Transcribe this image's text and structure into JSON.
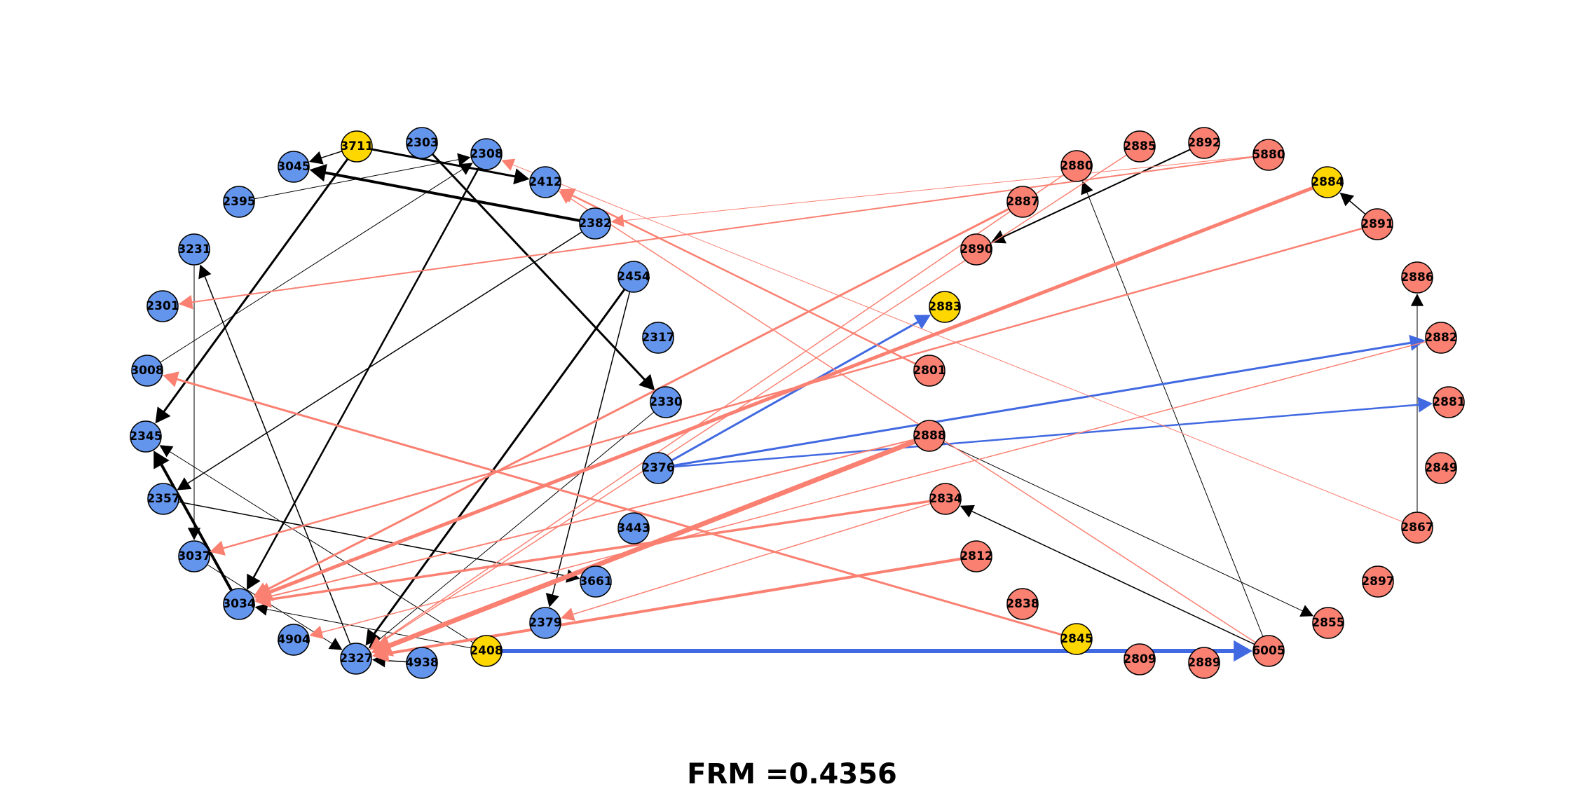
{
  "metric": {
    "label": "FRM =",
    "value": "0.4356"
  },
  "colors": {
    "group_a": "#6495ED",
    "group_b": "#FA8072",
    "highlight": "#FFD700",
    "edge_black": "#000000",
    "edge_salmon": "#FA8072",
    "edge_blue": "#4169E1"
  },
  "nodes": [
    {
      "id": "3711",
      "group": "highlight"
    },
    {
      "id": "2303",
      "group": "group_a"
    },
    {
      "id": "2308",
      "group": "group_a"
    },
    {
      "id": "2412",
      "group": "group_a"
    },
    {
      "id": "3045",
      "group": "group_a"
    },
    {
      "id": "2395",
      "group": "group_a"
    },
    {
      "id": "2382",
      "group": "group_a"
    },
    {
      "id": "3231",
      "group": "group_a"
    },
    {
      "id": "2454",
      "group": "group_a"
    },
    {
      "id": "2301",
      "group": "group_a"
    },
    {
      "id": "2317",
      "group": "group_a"
    },
    {
      "id": "3008",
      "group": "group_a"
    },
    {
      "id": "2330",
      "group": "group_a"
    },
    {
      "id": "2345",
      "group": "group_a"
    },
    {
      "id": "2376",
      "group": "group_a"
    },
    {
      "id": "2357",
      "group": "group_a"
    },
    {
      "id": "3443",
      "group": "group_a"
    },
    {
      "id": "3037",
      "group": "group_a"
    },
    {
      "id": "3661",
      "group": "group_a"
    },
    {
      "id": "3034",
      "group": "group_a"
    },
    {
      "id": "2379",
      "group": "group_a"
    },
    {
      "id": "4904",
      "group": "group_a"
    },
    {
      "id": "2408",
      "group": "highlight"
    },
    {
      "id": "2327",
      "group": "group_a"
    },
    {
      "id": "4938",
      "group": "group_a"
    },
    {
      "id": "2880",
      "group": "group_b"
    },
    {
      "id": "2885",
      "group": "group_b"
    },
    {
      "id": "2892",
      "group": "group_b"
    },
    {
      "id": "5880",
      "group": "group_b"
    },
    {
      "id": "2884",
      "group": "highlight"
    },
    {
      "id": "2887",
      "group": "group_b"
    },
    {
      "id": "2891",
      "group": "group_b"
    },
    {
      "id": "2890",
      "group": "group_b"
    },
    {
      "id": "2886",
      "group": "group_b"
    },
    {
      "id": "2883",
      "group": "highlight"
    },
    {
      "id": "2882",
      "group": "group_b"
    },
    {
      "id": "2801",
      "group": "group_b"
    },
    {
      "id": "2881",
      "group": "group_b"
    },
    {
      "id": "2888",
      "group": "group_b"
    },
    {
      "id": "2849",
      "group": "group_b"
    },
    {
      "id": "2834",
      "group": "group_b"
    },
    {
      "id": "2867",
      "group": "group_b"
    },
    {
      "id": "2812",
      "group": "group_b"
    },
    {
      "id": "2897",
      "group": "group_b"
    },
    {
      "id": "2838",
      "group": "group_b"
    },
    {
      "id": "2845",
      "group": "highlight"
    },
    {
      "id": "2855",
      "group": "group_b"
    },
    {
      "id": "2809",
      "group": "group_b"
    },
    {
      "id": "2889",
      "group": "group_b"
    },
    {
      "id": "6005",
      "group": "group_b"
    }
  ],
  "edges": [
    {
      "from": "3711",
      "to": "3045",
      "color": "edge_black",
      "weight": 1.5
    },
    {
      "from": "3711",
      "to": "2412",
      "color": "edge_black",
      "weight": 3
    },
    {
      "from": "3711",
      "to": "2345",
      "color": "edge_black",
      "weight": 3
    },
    {
      "from": "2303",
      "to": "2330",
      "color": "edge_black",
      "weight": 3
    },
    {
      "from": "2395",
      "to": "2308",
      "color": "edge_black",
      "weight": 1
    },
    {
      "from": "3008",
      "to": "2308",
      "color": "edge_black",
      "weight": 1
    },
    {
      "from": "2308",
      "to": "3034",
      "color": "edge_black",
      "weight": 2.5
    },
    {
      "from": "2382",
      "to": "3045",
      "color": "edge_black",
      "weight": 4
    },
    {
      "from": "2382",
      "to": "2357",
      "color": "edge_black",
      "weight": 1.5
    },
    {
      "from": "2454",
      "to": "2327",
      "color": "edge_black",
      "weight": 3
    },
    {
      "from": "2454",
      "to": "2379",
      "color": "edge_black",
      "weight": 1.5
    },
    {
      "from": "2330",
      "to": "2327",
      "color": "edge_black",
      "weight": 1
    },
    {
      "from": "3231",
      "to": "3037",
      "color": "edge_black",
      "weight": 1
    },
    {
      "from": "2327",
      "to": "3231",
      "color": "edge_black",
      "weight": 1.5
    },
    {
      "from": "3034",
      "to": "2345",
      "color": "edge_black",
      "weight": 4
    },
    {
      "from": "2357",
      "to": "3661",
      "color": "edge_black",
      "weight": 1.5
    },
    {
      "from": "3037",
      "to": "2327",
      "color": "edge_black",
      "weight": 1
    },
    {
      "from": "2408",
      "to": "2345",
      "color": "edge_black",
      "weight": 1
    },
    {
      "from": "2408",
      "to": "3034",
      "color": "edge_black",
      "weight": 1
    },
    {
      "from": "4938",
      "to": "2327",
      "color": "edge_black",
      "weight": 1.5
    },
    {
      "from": "2892",
      "to": "2890",
      "color": "edge_black",
      "weight": 2
    },
    {
      "from": "2891",
      "to": "2884",
      "color": "edge_black",
      "weight": 1.5
    },
    {
      "from": "2867",
      "to": "2886",
      "color": "edge_black",
      "weight": 1
    },
    {
      "from": "6005",
      "to": "2880",
      "color": "edge_black",
      "weight": 1
    },
    {
      "from": "6005",
      "to": "2834",
      "color": "edge_black",
      "weight": 1.5
    },
    {
      "from": "2888",
      "to": "2855",
      "color": "edge_black",
      "weight": 1
    },
    {
      "from": "2376",
      "to": "2883",
      "color": "edge_blue",
      "weight": 3
    },
    {
      "from": "2376",
      "to": "2882",
      "color": "edge_blue",
      "weight": 3
    },
    {
      "from": "2376",
      "to": "2881",
      "color": "edge_blue",
      "weight": 2.5
    },
    {
      "from": "2408",
      "to": "6005",
      "color": "edge_blue",
      "weight": 6
    },
    {
      "from": "5880",
      "to": "2301",
      "color": "edge_salmon",
      "weight": 2
    },
    {
      "from": "5880",
      "to": "2382",
      "color": "edge_salmon",
      "weight": 1
    },
    {
      "from": "2801",
      "to": "2412",
      "color": "edge_salmon",
      "weight": 2.5
    },
    {
      "from": "2867",
      "to": "2308",
      "color": "edge_salmon",
      "weight": 1
    },
    {
      "from": "6005",
      "to": "2412",
      "color": "edge_salmon",
      "weight": 1.5
    },
    {
      "from": "2884",
      "to": "3034",
      "color": "edge_salmon",
      "weight": 5
    },
    {
      "from": "2891",
      "to": "3037",
      "color": "edge_salmon",
      "weight": 2.5
    },
    {
      "from": "2887",
      "to": "3034",
      "color": "edge_salmon",
      "weight": 3
    },
    {
      "from": "2885",
      "to": "2327",
      "color": "edge_salmon",
      "weight": 1.5
    },
    {
      "from": "2880",
      "to": "2327",
      "color": "edge_salmon",
      "weight": 1.5
    },
    {
      "from": "2888",
      "to": "2327",
      "color": "edge_salmon",
      "weight": 7
    },
    {
      "from": "2888",
      "to": "3034",
      "color": "edge_salmon",
      "weight": 2
    },
    {
      "from": "2834",
      "to": "3034",
      "color": "edge_salmon",
      "weight": 3.5
    },
    {
      "from": "2834",
      "to": "2379",
      "color": "edge_salmon",
      "weight": 1.5
    },
    {
      "from": "2812",
      "to": "2327",
      "color": "edge_salmon",
      "weight": 4
    },
    {
      "from": "2882",
      "to": "4904",
      "color": "edge_salmon",
      "weight": 1.5
    },
    {
      "from": "2845",
      "to": "3008",
      "color": "edge_salmon",
      "weight": 3
    }
  ]
}
